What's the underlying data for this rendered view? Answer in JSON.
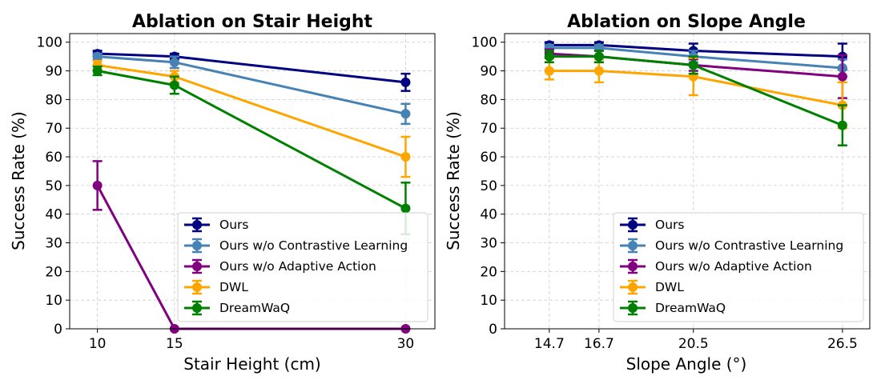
{
  "chart_data": [
    {
      "type": "line",
      "title": "Ablation on Stair Height",
      "xlabel": "Stair Height (cm)",
      "ylabel": "Success Rate (%)",
      "x": [
        10,
        15,
        30
      ],
      "xticks": [
        10,
        15,
        30
      ],
      "xlim": [
        8.2,
        31.9
      ],
      "ylim": [
        0,
        103
      ],
      "yticks": [
        0,
        10,
        20,
        30,
        40,
        50,
        60,
        70,
        80,
        90,
        100
      ],
      "grid": true,
      "legend_position": "lower-right",
      "series": [
        {
          "name": "Ours",
          "color": "#000080",
          "values": [
            96,
            95,
            86
          ],
          "errors": [
            1,
            1,
            3
          ]
        },
        {
          "name": "Ours w/o Contrastive Learning",
          "color": "#4682B4",
          "values": [
            95,
            93,
            75
          ],
          "errors": [
            1,
            2,
            3.5
          ]
        },
        {
          "name": "Ours w/o Adaptive Action",
          "color": "#800080",
          "values": [
            50,
            0,
            0
          ],
          "errors": [
            8.5,
            0,
            0
          ]
        },
        {
          "name": "DWL",
          "color": "#FFA500",
          "values": [
            92,
            88,
            60
          ],
          "errors": [
            1.5,
            2,
            7
          ]
        },
        {
          "name": "DreamWaQ",
          "color": "#008000",
          "values": [
            90,
            85,
            42
          ],
          "errors": [
            1.5,
            3,
            9
          ]
        }
      ]
    },
    {
      "type": "line",
      "title": "Ablation on Slope Angle",
      "xlabel": "Slope Angle (°)",
      "ylabel": "Success Rate (%)",
      "x": [
        14.7,
        16.7,
        20.5,
        26.5
      ],
      "xticks": [
        14.7,
        16.7,
        20.5,
        26.5
      ],
      "xtick_labels": [
        "14.7",
        "16.7",
        "20.5",
        "26.5"
      ],
      "xlim": [
        12.9,
        27.6
      ],
      "ylim": [
        0,
        103
      ],
      "yticks": [
        0,
        10,
        20,
        30,
        40,
        50,
        60,
        70,
        80,
        90,
        100
      ],
      "grid": true,
      "legend_position": "lower-right",
      "series": [
        {
          "name": "Ours",
          "color": "#000080",
          "values": [
            99,
            99,
            97,
            95
          ],
          "errors": [
            1,
            1,
            2.5,
            4.5
          ]
        },
        {
          "name": "Ours w/o Contrastive Learning",
          "color": "#4682B4",
          "values": [
            98,
            98,
            95,
            91
          ],
          "errors": [
            1,
            1,
            2,
            3
          ]
        },
        {
          "name": "Ours w/o Adaptive Action",
          "color": "#800080",
          "values": [
            96,
            95,
            92,
            88
          ],
          "errors": [
            1.5,
            2,
            2,
            7.5
          ]
        },
        {
          "name": "DWL",
          "color": "#FFA500",
          "values": [
            90,
            90,
            88,
            78
          ],
          "errors": [
            3,
            4,
            6.5,
            8
          ]
        },
        {
          "name": "DreamWaQ",
          "color": "#008000",
          "values": [
            95,
            95,
            92,
            71
          ],
          "errors": [
            2,
            2,
            3,
            7
          ]
        }
      ]
    }
  ]
}
